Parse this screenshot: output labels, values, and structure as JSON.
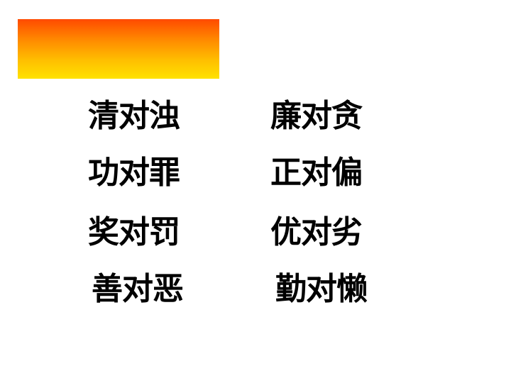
{
  "pairs": {
    "left": [
      "清对浊",
      "功对罪",
      "奖对罚",
      "善对恶"
    ],
    "right": [
      "廉对贪",
      "正对偏",
      "优对劣",
      "勤对懒"
    ]
  },
  "colors": {
    "banner_top": "#ff4a00",
    "banner_bottom": "#ffe200",
    "text": "#000000",
    "background": "#ffffff"
  }
}
